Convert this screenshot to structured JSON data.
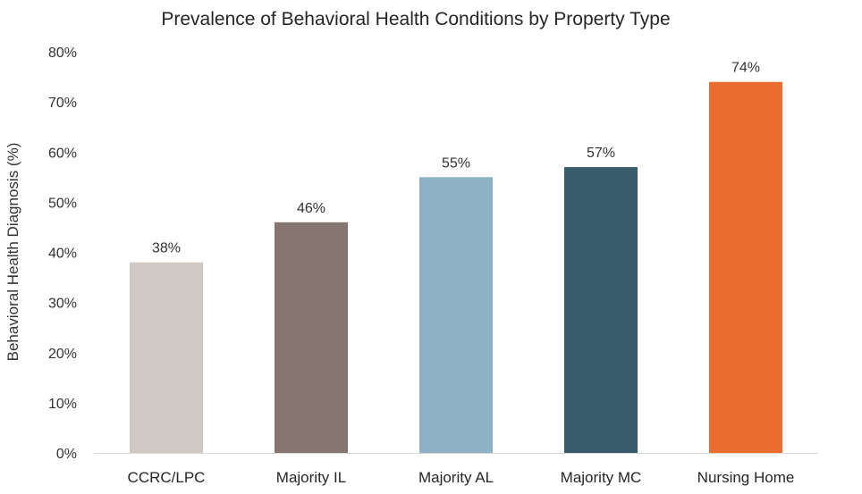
{
  "chart_data": {
    "type": "bar",
    "title": "Prevalence of Behavioral Health Conditions by Property Type",
    "xlabel": "",
    "ylabel": "Behavioral Health Diagnosis (%)",
    "ylim": [
      0,
      80
    ],
    "y_ticks": [
      "0%",
      "10%",
      "20%",
      "30%",
      "40%",
      "50%",
      "60%",
      "70%",
      "80%"
    ],
    "y_tick_values": [
      0,
      10,
      20,
      30,
      40,
      50,
      60,
      70,
      80
    ],
    "categories": [
      "CCRC/LPC",
      "Majority IL",
      "Majority AL",
      "Majority MC",
      "Nursing Home"
    ],
    "values": [
      38,
      46,
      55,
      57,
      74
    ],
    "data_labels": [
      "38%",
      "46%",
      "55%",
      "57%",
      "74%"
    ],
    "colors": [
      "#CFC9C6",
      "#85776F",
      "#8DB1C5",
      "#375B6A",
      "#EB6D2F"
    ],
    "grid": false,
    "legend": "none"
  }
}
